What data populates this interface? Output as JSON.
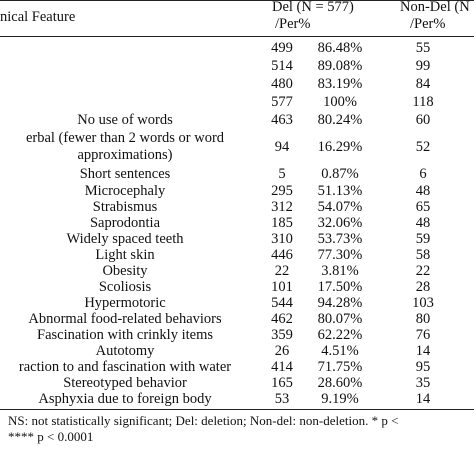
{
  "table": {
    "header": {
      "feature": "nical Feature",
      "del": "Del (N = 577)",
      "del_sub": "/Per%",
      "nondel": "Non-Del (N",
      "nondel_sub": "/Per%"
    },
    "rows": [
      {
        "del_n": "499",
        "del_pct": "86.48%",
        "nondel_n": "55"
      },
      {
        "del_n": "514",
        "del_pct": "89.08%",
        "nondel_n": "99"
      },
      {
        "del_n": "480",
        "del_pct": "83.19%",
        "nondel_n": "84"
      },
      {
        "del_n": "577",
        "del_pct": "100%",
        "nondel_n": "118"
      },
      {
        "label": "No use of words",
        "del_n": "463",
        "del_pct": "80.24%",
        "nondel_n": "60"
      },
      {
        "label": "erbal (fewer than 2 words or word approximations)",
        "del_n": "94",
        "del_pct": "16.29%",
        "nondel_n": "52"
      },
      {
        "label": "Short sentences",
        "del_n": "5",
        "del_pct": "0.87%",
        "nondel_n": "6"
      },
      {
        "label": "Microcephaly",
        "del_n": "295",
        "del_pct": "51.13%",
        "nondel_n": "48"
      },
      {
        "label": "Strabismus",
        "del_n": "312",
        "del_pct": "54.07%",
        "nondel_n": "65"
      },
      {
        "label": "Saprodontia",
        "del_n": "185",
        "del_pct": "32.06%",
        "nondel_n": "48"
      },
      {
        "label": "Widely spaced teeth",
        "del_n": "310",
        "del_pct": "53.73%",
        "nondel_n": "59"
      },
      {
        "label": "Light skin",
        "del_n": "446",
        "del_pct": "77.30%",
        "nondel_n": "58"
      },
      {
        "label": "Obesity",
        "del_n": "22",
        "del_pct": "3.81%",
        "nondel_n": "22"
      },
      {
        "label": "Scoliosis",
        "del_n": "101",
        "del_pct": "17.50%",
        "nondel_n": "28"
      },
      {
        "label": "Hypermotoric",
        "del_n": "544",
        "del_pct": "94.28%",
        "nondel_n": "103"
      },
      {
        "label": "Abnormal food-related behaviors",
        "del_n": "462",
        "del_pct": "80.07%",
        "nondel_n": "80"
      },
      {
        "label": "Fascination with crinkly items",
        "del_n": "359",
        "del_pct": "62.22%",
        "nondel_n": "76"
      },
      {
        "label": "Autotomy",
        "del_n": "26",
        "del_pct": "4.51%",
        "nondel_n": "14"
      },
      {
        "label": "raction to and fascination with water",
        "del_n": "414",
        "del_pct": "71.75%",
        "nondel_n": "95"
      },
      {
        "label": "Stereotyped behavior",
        "del_n": "165",
        "del_pct": "28.60%",
        "nondel_n": "35"
      },
      {
        "label": "Asphyxia due to foreign body",
        "del_n": "53",
        "del_pct": "9.19%",
        "nondel_n": "14"
      }
    ],
    "footnote": [
      "NS: not statistically significant; Del: deletion; Non-del: non-deletion. * p <",
      "**** p < 0.0001"
    ]
  }
}
